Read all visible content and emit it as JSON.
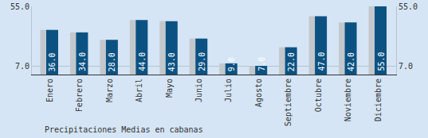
{
  "chart_data": {
    "type": "bar",
    "title": "Precipitaciones Medias en cabanas",
    "categories": [
      "Enero",
      "Febrero",
      "Marzo",
      "Abril",
      "Mayo",
      "Junio",
      "Julio",
      "Agosto",
      "Septiembre",
      "Octubre",
      "Noviembre",
      "Diciembre"
    ],
    "values": [
      36,
      34,
      28,
      44,
      43,
      29,
      9,
      7,
      22,
      47,
      42,
      55
    ],
    "value_labels": [
      "36.0",
      "34.0",
      "28.0",
      "44.0",
      "43.0",
      "29.0",
      "9.0",
      "7.0",
      "22.0",
      "47.0",
      "42.0",
      "55.0"
    ],
    "color": "#0b5282",
    "ylim": [
      0,
      55
    ],
    "yticks": [
      {
        "value": 7,
        "label": "7.0"
      },
      {
        "value": 55,
        "label": "55.0"
      }
    ],
    "grid": true,
    "data_labels": true
  }
}
